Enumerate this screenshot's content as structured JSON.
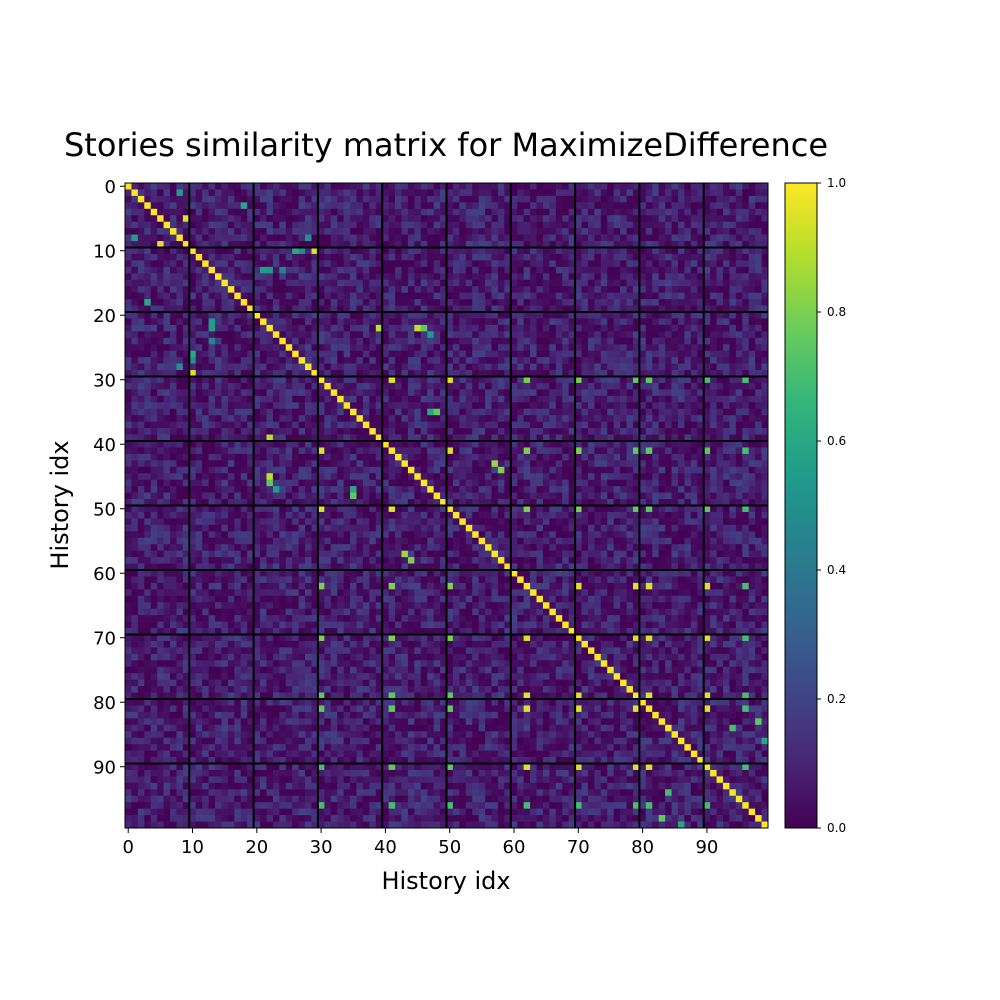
{
  "chart_data": {
    "type": "heatmap",
    "title": "Stories similarity matrix for MaximizeDifference",
    "xlabel": "History idx",
    "ylabel": "History idx",
    "size": 100,
    "x_ticks": [
      0,
      10,
      20,
      30,
      40,
      50,
      60,
      70,
      80,
      90
    ],
    "y_ticks": [
      0,
      10,
      20,
      30,
      40,
      50,
      60,
      70,
      80,
      90
    ],
    "x_tick_labels": [
      "0",
      "10",
      "20",
      "30",
      "40",
      "50",
      "60",
      "70",
      "80",
      "90"
    ],
    "y_tick_labels": [
      "0",
      "10",
      "20",
      "30",
      "40",
      "50",
      "60",
      "70",
      "80",
      "90"
    ],
    "block_lines": [
      9.5,
      19.5,
      29.5,
      39.5,
      49.5,
      59.5,
      69.5,
      79.5,
      89.5
    ],
    "colorbar": {
      "colormap": "viridis",
      "vmin": 0.0,
      "vmax": 1.0,
      "ticks": [
        0.0,
        0.2,
        0.4,
        0.6,
        0.8,
        1.0
      ],
      "tick_labels": [
        "0.0",
        "0.2",
        "0.4",
        "0.6",
        "0.8",
        "1.0"
      ]
    },
    "diagonal_value": 1.0,
    "background_range": [
      0.0,
      0.2
    ],
    "high_similarity_pairs": [
      [
        1,
        8,
        0.55
      ],
      [
        5,
        9,
        0.95
      ],
      [
        3,
        18,
        0.5
      ],
      [
        10,
        27,
        0.5
      ],
      [
        10,
        29,
        0.95
      ],
      [
        10,
        26,
        0.65
      ],
      [
        13,
        21,
        0.55
      ],
      [
        13,
        22,
        0.55
      ],
      [
        18,
        3,
        0.6
      ],
      [
        24,
        13,
        0.45
      ],
      [
        26,
        10,
        0.6
      ],
      [
        29,
        10,
        0.95
      ],
      [
        28,
        8,
        0.5
      ],
      [
        22,
        39,
        0.9
      ],
      [
        22,
        45,
        0.9
      ],
      [
        22,
        46,
        0.75
      ],
      [
        23,
        47,
        0.55
      ],
      [
        39,
        22,
        0.9
      ],
      [
        45,
        22,
        0.9
      ],
      [
        46,
        22,
        0.75
      ],
      [
        35,
        47,
        0.6
      ],
      [
        48,
        35,
        0.75
      ],
      [
        44,
        58,
        0.8
      ],
      [
        30,
        41,
        0.95
      ],
      [
        30,
        50,
        0.95
      ],
      [
        30,
        62,
        0.8
      ],
      [
        30,
        70,
        0.8
      ],
      [
        30,
        79,
        0.75
      ],
      [
        30,
        81,
        0.75
      ],
      [
        30,
        90,
        0.7
      ],
      [
        30,
        96,
        0.7
      ],
      [
        41,
        50,
        0.95
      ],
      [
        41,
        62,
        0.8
      ],
      [
        41,
        70,
        0.8
      ],
      [
        41,
        79,
        0.75
      ],
      [
        41,
        81,
        0.75
      ],
      [
        41,
        90,
        0.75
      ],
      [
        41,
        96,
        0.7
      ],
      [
        50,
        62,
        0.8
      ],
      [
        50,
        70,
        0.8
      ],
      [
        50,
        79,
        0.75
      ],
      [
        50,
        81,
        0.75
      ],
      [
        50,
        90,
        0.75
      ],
      [
        50,
        96,
        0.7
      ],
      [
        62,
        70,
        0.95
      ],
      [
        62,
        79,
        0.95
      ],
      [
        62,
        81,
        0.95
      ],
      [
        62,
        90,
        0.95
      ],
      [
        62,
        96,
        0.7
      ],
      [
        70,
        79,
        0.95
      ],
      [
        70,
        81,
        0.95
      ],
      [
        70,
        90,
        0.95
      ],
      [
        70,
        96,
        0.7
      ],
      [
        79,
        81,
        0.95
      ],
      [
        79,
        90,
        0.95
      ],
      [
        79,
        96,
        0.7
      ],
      [
        81,
        90,
        0.95
      ],
      [
        81,
        96,
        0.7
      ],
      [
        90,
        96,
        0.7
      ],
      [
        57,
        43,
        0.85
      ],
      [
        86,
        99,
        0.6
      ],
      [
        94,
        84,
        0.7
      ],
      [
        98,
        83,
        0.75
      ]
    ]
  }
}
